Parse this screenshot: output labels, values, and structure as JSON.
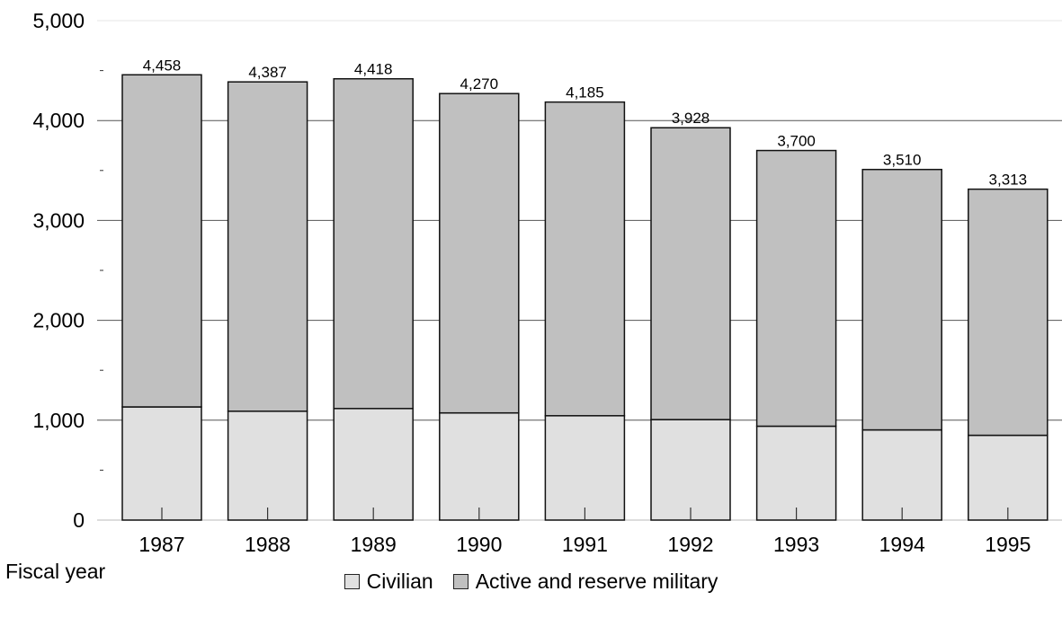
{
  "chart_data": {
    "type": "bar",
    "stacked": true,
    "xlabel": "Fiscal year",
    "ylabel": "",
    "ylim": [
      0,
      5000
    ],
    "y_ticks": [
      "0",
      "1,000",
      "2,000",
      "3,000",
      "4,000",
      "5,000"
    ],
    "grid": true,
    "legend_position": "bottom-center",
    "categories": [
      "1987",
      "1988",
      "1989",
      "1990",
      "1991",
      "1992",
      "1993",
      "1994",
      "1995"
    ],
    "series": [
      {
        "name": "Civilian",
        "color": "#e0e0e0",
        "values": [
          1133,
          1090,
          1117,
          1073,
          1045,
          1006,
          940,
          903,
          849
        ]
      },
      {
        "name": "Active and reserve military",
        "color": "#c0c0c0",
        "values": [
          3325,
          3297,
          3301,
          3197,
          3140,
          2922,
          2760,
          2607,
          2464
        ]
      }
    ],
    "total_labels": [
      "4,458",
      "4,387",
      "4,418",
      "4,270",
      "4,185",
      "3,928",
      "3,700",
      "3,510",
      "3,313"
    ]
  }
}
